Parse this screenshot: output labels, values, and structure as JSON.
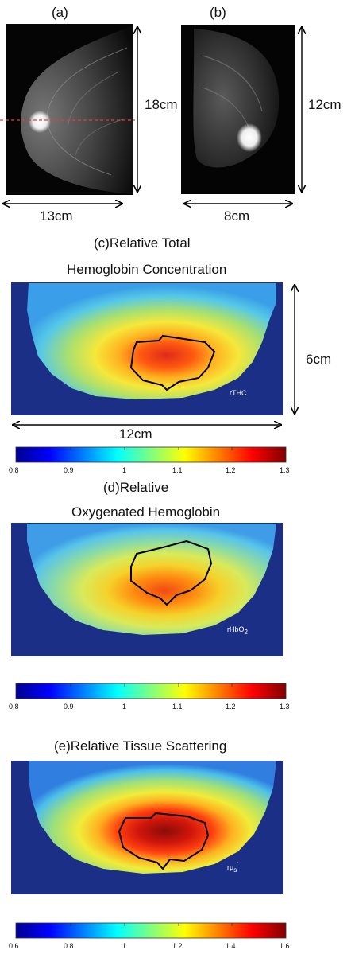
{
  "panel_a": {
    "tag": "(a)",
    "height_label": "18cm",
    "width_label": "13cm"
  },
  "panel_b": {
    "tag": "(b)",
    "height_label": "12cm",
    "width_label": "8cm"
  },
  "panel_c": {
    "title_line1": "(c)Relative Total",
    "title_line2": "Hemoglobin Concentration",
    "map_label": "rTHC",
    "height_label": "6cm",
    "width_label": "12cm",
    "colorbar_ticks": [
      "0.8",
      "0.9",
      "1",
      "1.1",
      "1.2",
      "1.3"
    ]
  },
  "panel_d": {
    "title_line1": "(d)Relative",
    "title_line2": "Oxygenated Hemoglobin",
    "map_label_main": "rHbO",
    "map_label_sub": "2",
    "colorbar_ticks": [
      "0.8",
      "0.9",
      "1",
      "1.1",
      "1.2",
      "1.3"
    ]
  },
  "panel_e": {
    "title": "(e)Relative Tissue Scattering",
    "map_label_main": "rμ",
    "map_label_sup": "'",
    "map_label_sub": "s",
    "colorbar_ticks": [
      "0.6",
      "0.8",
      "1",
      "1.2",
      "1.4",
      "1.6"
    ]
  },
  "colors": {
    "background_map": "#1c2f86",
    "tumor_outline": "#000000",
    "guide_line": "#e0403a"
  }
}
